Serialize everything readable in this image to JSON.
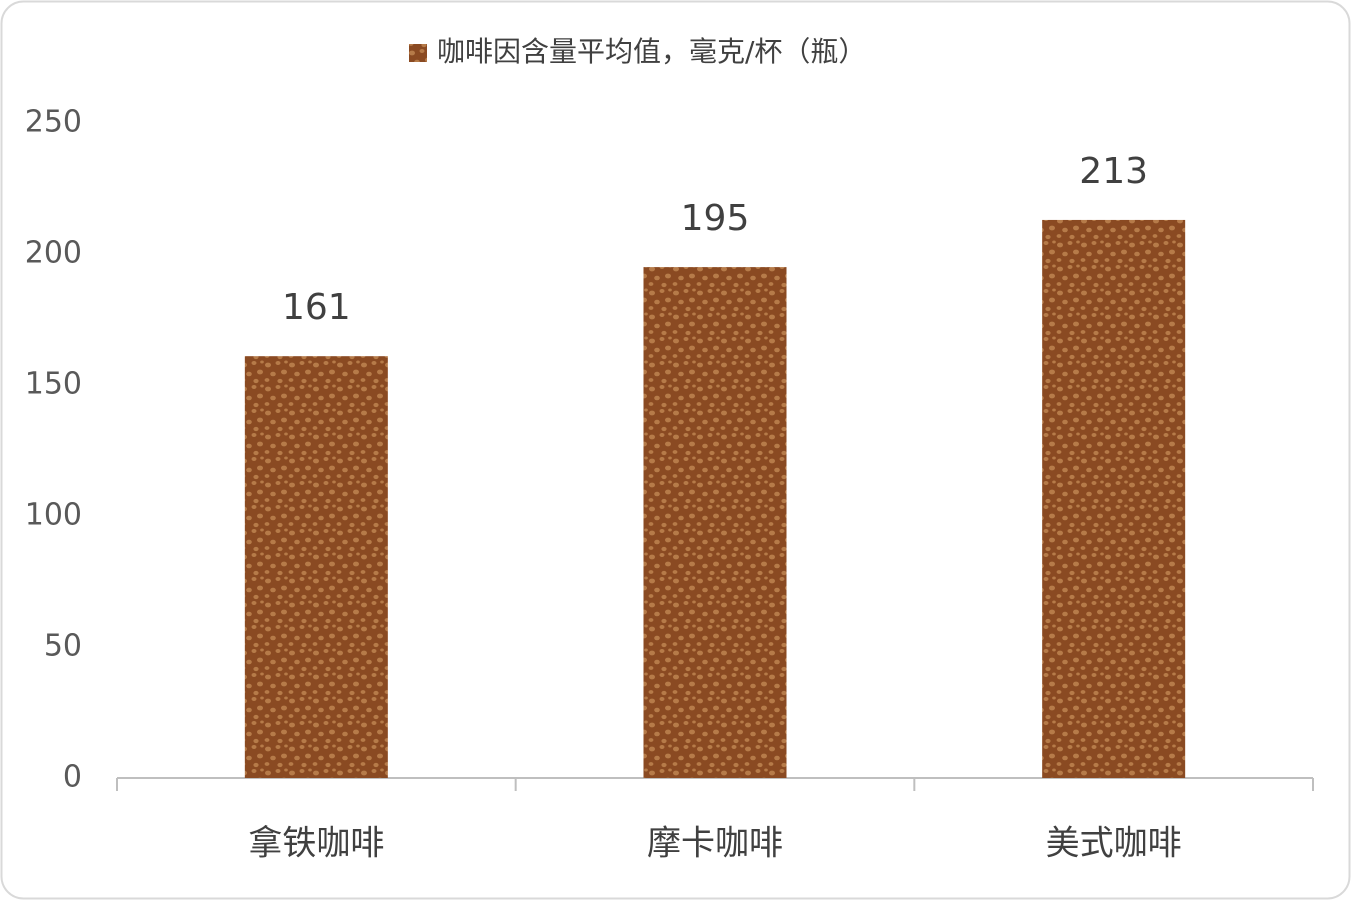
{
  "chart_data": {
    "type": "bar",
    "categories": [
      "拿铁咖啡",
      "摩卡咖啡",
      "美式咖啡"
    ],
    "series": [
      {
        "name": "咖啡因含量平均值，毫克/杯（瓶）",
        "color": "#8a4a22",
        "values": [
          161,
          195,
          213
        ]
      }
    ],
    "ylim": [
      0,
      250
    ],
    "yticks": [
      0,
      50,
      100,
      150,
      200,
      250
    ],
    "grid": false,
    "legend": "top"
  }
}
